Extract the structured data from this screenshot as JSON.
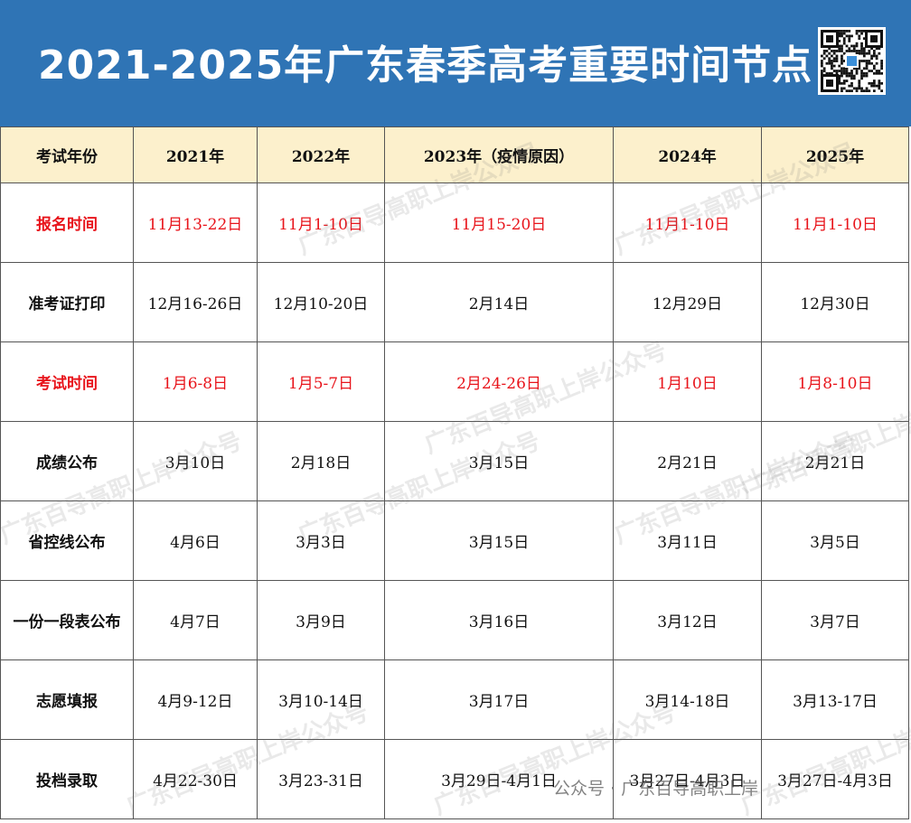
{
  "header": {
    "title": "2021-2025年广东春季高考重要时间节点"
  },
  "table": {
    "columns": [
      "考试年份",
      "2021年",
      "2022年",
      "2023年（疫情原因）",
      "2024年",
      "2025年"
    ],
    "rows": [
      {
        "color": "#e8141b",
        "cells": [
          "报名时间",
          "11月13-22日",
          "11月1-10日",
          "11月15-20日",
          "11月1-10日",
          "11月1-10日"
        ]
      },
      {
        "color": "#111111",
        "cells": [
          "准考证打印",
          "12月16-26日",
          "12月10-20日",
          "2月14日",
          "12月29日",
          "12月30日"
        ]
      },
      {
        "color": "#e8141b",
        "cells": [
          "考试时间",
          "1月6-8日",
          "1月5-7日",
          "2月24-26日",
          "1月10日",
          "1月8-10日"
        ]
      },
      {
        "color": "#111111",
        "cells": [
          "成绩公布",
          "3月10日",
          "2月18日",
          "3月15日",
          "2月21日",
          "2月21日"
        ]
      },
      {
        "color": "#111111",
        "cells": [
          "省控线公布",
          "4月6日",
          "3月3日",
          "3月15日",
          "3月11日",
          "3月5日"
        ]
      },
      {
        "color": "#111111",
        "cells": [
          "一份一段表公布",
          "4月7日",
          "3月9日",
          "3月16日",
          "3月12日",
          "3月7日"
        ]
      },
      {
        "color": "#111111",
        "cells": [
          "志愿填报",
          "4月9-12日",
          "3月10-14日",
          "3月17日",
          "3月14-18日",
          "3月13-17日"
        ]
      },
      {
        "color": "#111111",
        "cells": [
          "投档录取",
          "4月22-30日",
          "3月23-31日",
          "3月29日-4月1日",
          "3月27日-4月3日",
          "3月27日-4月3日"
        ]
      }
    ]
  },
  "watermark": "广东百导高职上岸公众号",
  "footer_overlay": "公众号 · 广东百导高职上岸"
}
